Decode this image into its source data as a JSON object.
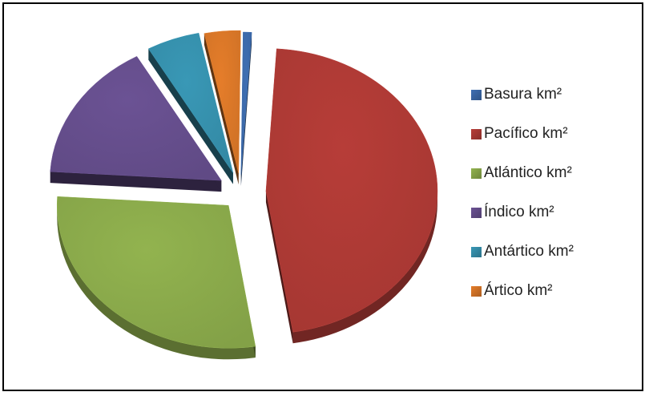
{
  "chart_data": {
    "type": "pie",
    "style": "3d-exploded",
    "categories": [
      "Basura km²",
      "Pacífico km²",
      "Atlántico km²",
      "Índico km²",
      "Antártico km²",
      "Ártico km²"
    ],
    "values": [
      0.8,
      46.5,
      28.5,
      15.8,
      5.0,
      3.4
    ],
    "colors": [
      "#3f6fb3",
      "#b73d38",
      "#92b34f",
      "#6b5294",
      "#3998b6",
      "#e57d2a"
    ],
    "legend_position": "right"
  }
}
